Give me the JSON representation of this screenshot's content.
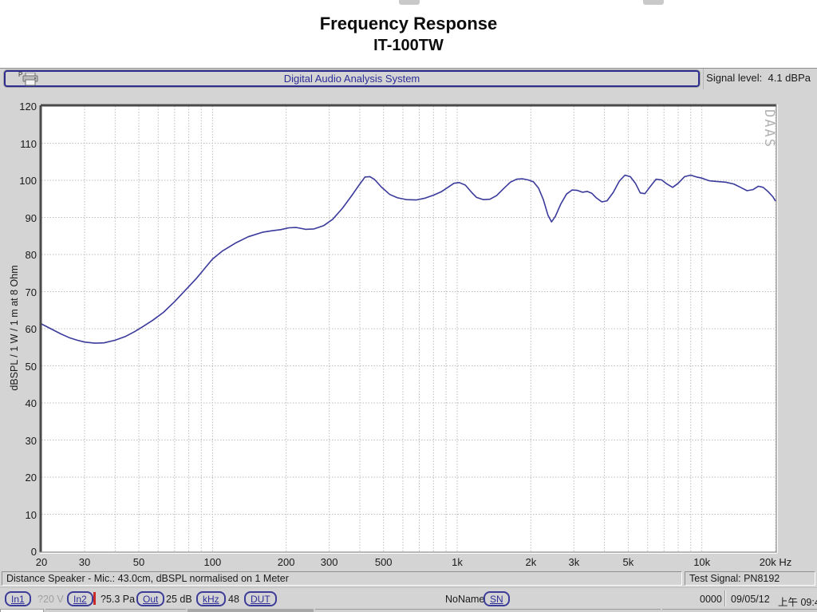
{
  "page": {
    "title_line1": "Frequency Response",
    "title_line2": "IT-100TW"
  },
  "toolbar_top": {
    "printer_label": "P",
    "app_title": "Digital Audio Analysis System",
    "signal_level_label": "Signal level:",
    "signal_level_value": "4.1 dBPa"
  },
  "chart_data": {
    "type": "line",
    "title": "Frequency Response IT-100TW",
    "xlabel": "Hz",
    "ylabel": "dBSPL / 1 W / 1 m at 8 Ohm",
    "x_scale": "log",
    "xlim": [
      20,
      20000
    ],
    "ylim": [
      0,
      120
    ],
    "grid": true,
    "watermark": "DAAS",
    "line_color": "#3a3a9c",
    "grid_color": "#bdbdbd",
    "y_tick_step": 10,
    "x_tick_values": [
      20,
      30,
      50,
      100,
      200,
      300,
      500,
      1000,
      2000,
      3000,
      5000,
      10000,
      20000
    ],
    "x_tick_labels": [
      "20",
      "30",
      "50",
      "100",
      "200",
      "300",
      "500",
      "1k",
      "2k",
      "3k",
      "5k",
      "10k",
      "20k Hz"
    ],
    "grid_x_values": [
      20,
      30,
      40,
      50,
      60,
      70,
      80,
      90,
      100,
      200,
      300,
      400,
      500,
      600,
      700,
      800,
      900,
      1000,
      2000,
      3000,
      4000,
      5000,
      6000,
      7000,
      8000,
      9000,
      10000,
      20000
    ],
    "series": [
      {
        "name": "IT-100TW frequency response",
        "points": [
          [
            20,
            61.3
          ],
          [
            22,
            59.9
          ],
          [
            24,
            58.6
          ],
          [
            26,
            57.6
          ],
          [
            28,
            56.9
          ],
          [
            30,
            56.4
          ],
          [
            33,
            56.1
          ],
          [
            36,
            56.2
          ],
          [
            40,
            56.9
          ],
          [
            44,
            57.9
          ],
          [
            48,
            59.2
          ],
          [
            52,
            60.6
          ],
          [
            57,
            62.3
          ],
          [
            63,
            64.4
          ],
          [
            70,
            67.3
          ],
          [
            78,
            70.6
          ],
          [
            86,
            73.6
          ],
          [
            95,
            77.0
          ],
          [
            100,
            78.8
          ],
          [
            110,
            81.0
          ],
          [
            125,
            83.2
          ],
          [
            140,
            84.8
          ],
          [
            160,
            86.0
          ],
          [
            175,
            86.4
          ],
          [
            190,
            86.7
          ],
          [
            205,
            87.2
          ],
          [
            220,
            87.3
          ],
          [
            240,
            86.8
          ],
          [
            260,
            86.9
          ],
          [
            285,
            87.8
          ],
          [
            310,
            89.5
          ],
          [
            340,
            92.5
          ],
          [
            370,
            95.8
          ],
          [
            400,
            99.0
          ],
          [
            420,
            100.9
          ],
          [
            440,
            101.0
          ],
          [
            460,
            100.2
          ],
          [
            490,
            98.2
          ],
          [
            530,
            96.2
          ],
          [
            570,
            95.3
          ],
          [
            620,
            94.8
          ],
          [
            680,
            94.7
          ],
          [
            740,
            95.2
          ],
          [
            800,
            96.0
          ],
          [
            860,
            96.9
          ],
          [
            920,
            98.2
          ],
          [
            970,
            99.2
          ],
          [
            1020,
            99.4
          ],
          [
            1080,
            98.7
          ],
          [
            1140,
            96.9
          ],
          [
            1200,
            95.4
          ],
          [
            1280,
            94.8
          ],
          [
            1360,
            94.9
          ],
          [
            1450,
            95.9
          ],
          [
            1550,
            97.8
          ],
          [
            1650,
            99.5
          ],
          [
            1750,
            100.3
          ],
          [
            1850,
            100.4
          ],
          [
            1950,
            100.1
          ],
          [
            2050,
            99.6
          ],
          [
            2150,
            97.9
          ],
          [
            2250,
            94.8
          ],
          [
            2350,
            90.6
          ],
          [
            2430,
            88.8
          ],
          [
            2520,
            90.3
          ],
          [
            2650,
            93.6
          ],
          [
            2800,
            96.3
          ],
          [
            2950,
            97.4
          ],
          [
            3100,
            97.3
          ],
          [
            3250,
            96.8
          ],
          [
            3400,
            97.0
          ],
          [
            3550,
            96.5
          ],
          [
            3700,
            95.3
          ],
          [
            3900,
            94.2
          ],
          [
            4100,
            94.5
          ],
          [
            4350,
            96.8
          ],
          [
            4600,
            99.8
          ],
          [
            4850,
            101.4
          ],
          [
            5100,
            101.0
          ],
          [
            5350,
            99.2
          ],
          [
            5600,
            96.6
          ],
          [
            5850,
            96.4
          ],
          [
            6150,
            98.3
          ],
          [
            6500,
            100.3
          ],
          [
            6850,
            100.1
          ],
          [
            7200,
            99.0
          ],
          [
            7600,
            98.1
          ],
          [
            8000,
            99.2
          ],
          [
            8500,
            101.0
          ],
          [
            9000,
            101.4
          ],
          [
            9500,
            100.9
          ],
          [
            10000,
            100.6
          ],
          [
            10700,
            99.9
          ],
          [
            11500,
            99.7
          ],
          [
            12500,
            99.5
          ],
          [
            13500,
            99.0
          ],
          [
            14500,
            98.0
          ],
          [
            15300,
            97.2
          ],
          [
            16200,
            97.5
          ],
          [
            17000,
            98.4
          ],
          [
            17800,
            98.1
          ],
          [
            18700,
            96.9
          ],
          [
            19500,
            95.6
          ],
          [
            20000,
            94.4
          ]
        ]
      }
    ]
  },
  "status_bar": {
    "left_text": "Distance Speaker - Mic.: 43.0cm, dBSPL normalised on 1 Meter",
    "right_text": "Test Signal: PN8192"
  },
  "toolbar_bottom": {
    "btn_in1": "In1",
    "range_v": "?20 V",
    "btn_in2": "In2",
    "range_pa": "?5.3 Pa",
    "btn_out": "Out",
    "out_level": "25 dB",
    "btn_khz": "kHz",
    "khz_value": "48",
    "btn_dut": "DUT",
    "device_name": "NoName",
    "btn_sn": "SN",
    "counter": "0000",
    "date": "09/05/12",
    "time": "上午 09:4"
  }
}
